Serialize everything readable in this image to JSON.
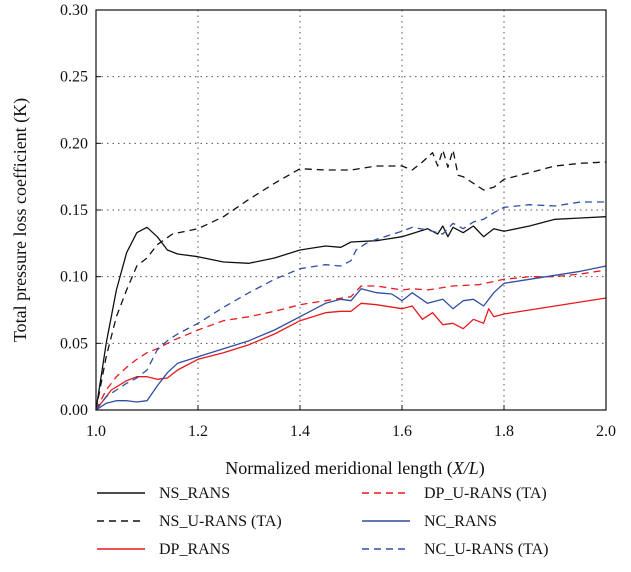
{
  "chart_data": {
    "type": "line",
    "title": "",
    "xlabel": "Normalized meridional length (",
    "xlabel_var": "X/L",
    "xlabel_close": ")",
    "ylabel": "Total pressure loss coefficient (K)",
    "xlim": [
      1.0,
      2.0
    ],
    "ylim": [
      0.0,
      0.3
    ],
    "xticks": [
      "1.0",
      "1.2",
      "1.4",
      "1.6",
      "1.8",
      "2.0"
    ],
    "yticks": [
      "0.00",
      "0.05",
      "0.10",
      "0.15",
      "0.20",
      "0.25",
      "0.30"
    ],
    "grid": true,
    "legend_position": "bottom",
    "series": [
      {
        "name": "NS_RANS",
        "color": "#111111",
        "dash": "solid",
        "x": [
          1.0,
          1.02,
          1.04,
          1.06,
          1.08,
          1.1,
          1.12,
          1.14,
          1.16,
          1.2,
          1.25,
          1.3,
          1.35,
          1.4,
          1.45,
          1.48,
          1.5,
          1.55,
          1.6,
          1.65,
          1.67,
          1.68,
          1.69,
          1.7,
          1.72,
          1.74,
          1.76,
          1.78,
          1.8,
          1.85,
          1.9,
          1.95,
          2.0
        ],
        "values": [
          0.0,
          0.05,
          0.09,
          0.118,
          0.133,
          0.137,
          0.13,
          0.12,
          0.117,
          0.115,
          0.111,
          0.11,
          0.114,
          0.12,
          0.123,
          0.122,
          0.126,
          0.127,
          0.13,
          0.136,
          0.132,
          0.138,
          0.13,
          0.137,
          0.133,
          0.138,
          0.13,
          0.136,
          0.134,
          0.138,
          0.143,
          0.144,
          0.145
        ]
      },
      {
        "name": "NS_U-RANS (TA)",
        "color": "#111111",
        "dash": "dashed",
        "x": [
          1.0,
          1.02,
          1.04,
          1.06,
          1.08,
          1.1,
          1.12,
          1.15,
          1.2,
          1.25,
          1.3,
          1.35,
          1.4,
          1.45,
          1.5,
          1.55,
          1.6,
          1.62,
          1.64,
          1.66,
          1.67,
          1.68,
          1.69,
          1.7,
          1.71,
          1.72,
          1.74,
          1.76,
          1.78,
          1.8,
          1.85,
          1.9,
          1.95,
          2.0
        ],
        "values": [
          0.0,
          0.04,
          0.07,
          0.09,
          0.108,
          0.114,
          0.124,
          0.132,
          0.136,
          0.145,
          0.158,
          0.17,
          0.181,
          0.18,
          0.18,
          0.183,
          0.183,
          0.18,
          0.186,
          0.193,
          0.183,
          0.195,
          0.182,
          0.195,
          0.176,
          0.175,
          0.17,
          0.165,
          0.167,
          0.173,
          0.178,
          0.183,
          0.185,
          0.186
        ]
      },
      {
        "name": "DP_RANS",
        "color": "#e8191c",
        "dash": "solid",
        "x": [
          1.0,
          1.03,
          1.06,
          1.08,
          1.1,
          1.12,
          1.14,
          1.16,
          1.2,
          1.25,
          1.3,
          1.35,
          1.4,
          1.45,
          1.48,
          1.5,
          1.52,
          1.55,
          1.6,
          1.62,
          1.64,
          1.66,
          1.68,
          1.7,
          1.72,
          1.74,
          1.76,
          1.77,
          1.78,
          1.8,
          1.85,
          1.9,
          1.95,
          2.0
        ],
        "values": [
          0.0,
          0.015,
          0.022,
          0.025,
          0.025,
          0.023,
          0.024,
          0.03,
          0.038,
          0.043,
          0.049,
          0.057,
          0.067,
          0.073,
          0.074,
          0.074,
          0.08,
          0.079,
          0.076,
          0.078,
          0.068,
          0.073,
          0.064,
          0.065,
          0.061,
          0.068,
          0.065,
          0.076,
          0.07,
          0.072,
          0.075,
          0.078,
          0.081,
          0.084
        ]
      },
      {
        "name": "DP_U-RANS (TA)",
        "color": "#e8191c",
        "dash": "dashed",
        "x": [
          1.0,
          1.02,
          1.04,
          1.06,
          1.08,
          1.1,
          1.12,
          1.15,
          1.2,
          1.25,
          1.3,
          1.35,
          1.4,
          1.45,
          1.5,
          1.52,
          1.55,
          1.6,
          1.62,
          1.65,
          1.7,
          1.75,
          1.8,
          1.85,
          1.9,
          1.95,
          2.0
        ],
        "values": [
          0.0,
          0.015,
          0.025,
          0.032,
          0.038,
          0.043,
          0.046,
          0.052,
          0.06,
          0.067,
          0.07,
          0.074,
          0.079,
          0.082,
          0.085,
          0.093,
          0.093,
          0.09,
          0.091,
          0.09,
          0.093,
          0.094,
          0.098,
          0.1,
          0.1,
          0.102,
          0.105
        ]
      },
      {
        "name": "NC_RANS",
        "color": "#2e4fa2",
        "dash": "solid",
        "x": [
          1.0,
          1.02,
          1.04,
          1.06,
          1.08,
          1.1,
          1.12,
          1.14,
          1.16,
          1.2,
          1.25,
          1.3,
          1.35,
          1.4,
          1.45,
          1.48,
          1.5,
          1.52,
          1.55,
          1.58,
          1.6,
          1.62,
          1.65,
          1.68,
          1.7,
          1.72,
          1.74,
          1.76,
          1.78,
          1.8,
          1.85,
          1.9,
          1.95,
          2.0
        ],
        "values": [
          0.0,
          0.005,
          0.007,
          0.007,
          0.006,
          0.007,
          0.018,
          0.028,
          0.035,
          0.04,
          0.046,
          0.052,
          0.06,
          0.07,
          0.08,
          0.083,
          0.082,
          0.091,
          0.088,
          0.087,
          0.082,
          0.088,
          0.08,
          0.083,
          0.076,
          0.082,
          0.083,
          0.078,
          0.088,
          0.095,
          0.098,
          0.101,
          0.104,
          0.108
        ]
      },
      {
        "name": "NC_U-RANS (TA)",
        "color": "#2e4fa2",
        "dash": "dashed",
        "x": [
          1.0,
          1.02,
          1.04,
          1.06,
          1.08,
          1.1,
          1.12,
          1.14,
          1.16,
          1.2,
          1.25,
          1.3,
          1.35,
          1.4,
          1.45,
          1.48,
          1.5,
          1.51,
          1.53,
          1.55,
          1.6,
          1.62,
          1.65,
          1.68,
          1.7,
          1.72,
          1.74,
          1.76,
          1.78,
          1.8,
          1.85,
          1.9,
          1.95,
          2.0
        ],
        "values": [
          0.0,
          0.01,
          0.015,
          0.02,
          0.024,
          0.03,
          0.045,
          0.052,
          0.057,
          0.065,
          0.077,
          0.088,
          0.098,
          0.106,
          0.109,
          0.108,
          0.112,
          0.12,
          0.125,
          0.128,
          0.134,
          0.137,
          0.135,
          0.132,
          0.14,
          0.136,
          0.141,
          0.143,
          0.148,
          0.152,
          0.154,
          0.153,
          0.156,
          0.156
        ]
      }
    ]
  }
}
